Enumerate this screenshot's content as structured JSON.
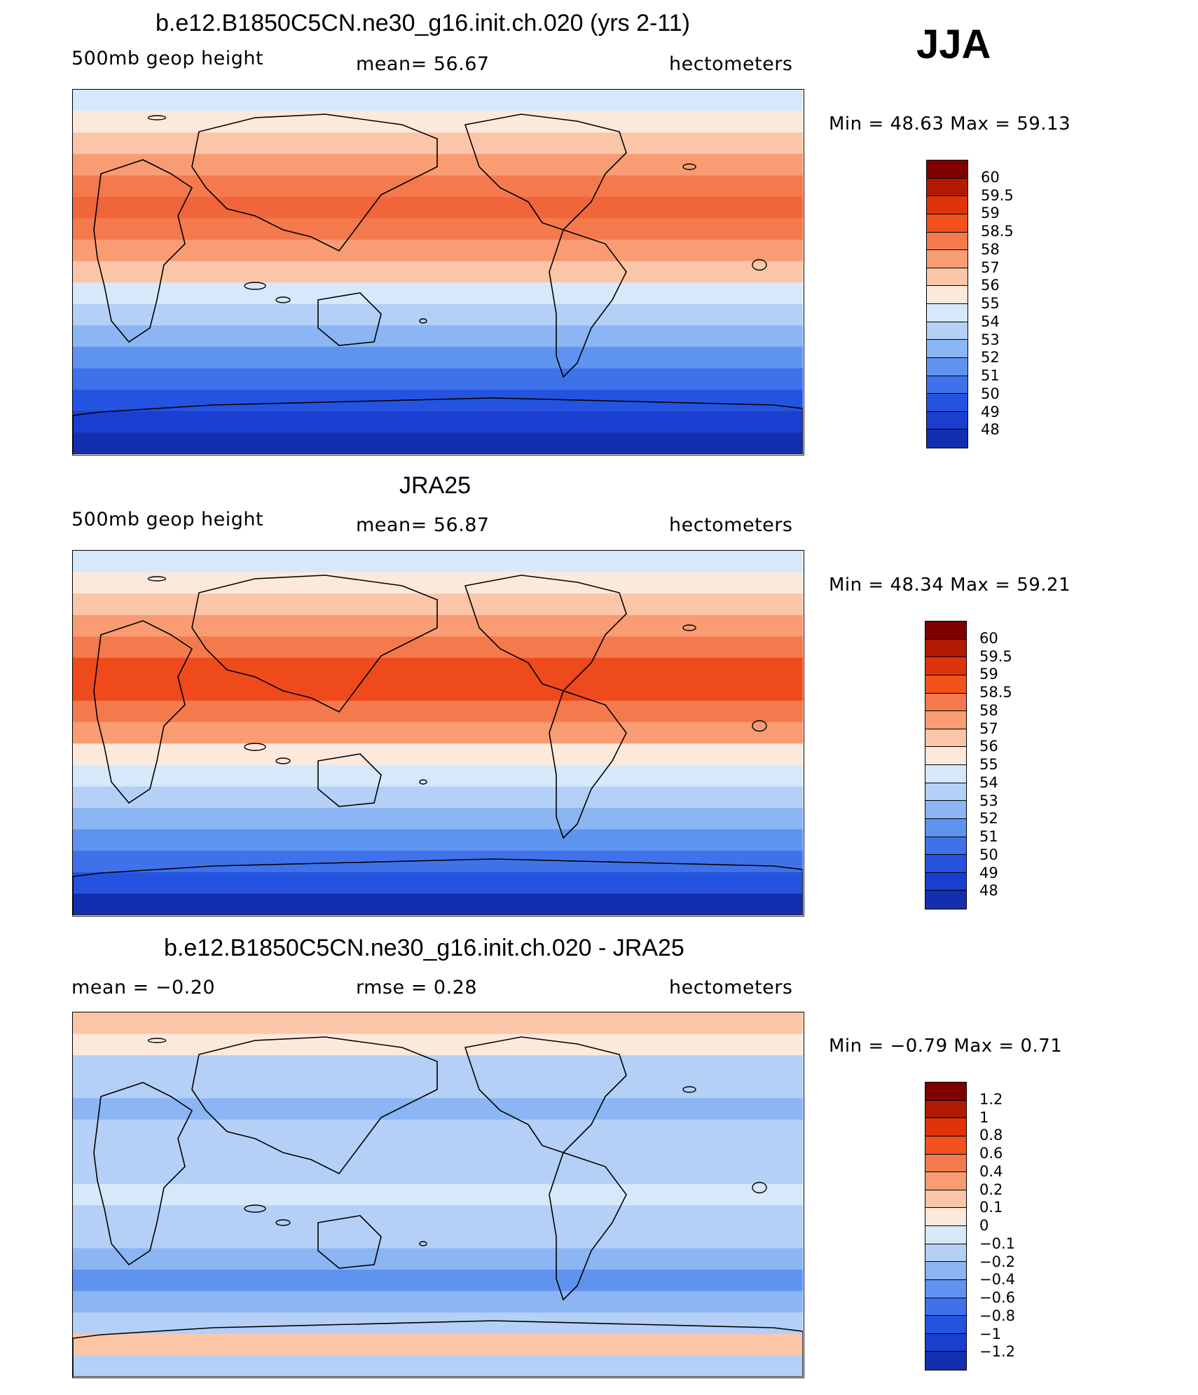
{
  "season": "JJA",
  "panels": [
    {
      "title": "b.e12.B1850C5CN.ne30_g16.init.ch.020 (yrs 2-11)",
      "left_label": "500mb  geop  height",
      "center_label": "mean=   56.67",
      "right_label": "hectometers",
      "minmax": "Min  =    48.63  Max  =    59.13",
      "colorbar_labels": [
        "60",
        "59.5",
        "59",
        "58.5",
        "58",
        "57",
        "56",
        "55",
        "54",
        "53",
        "52",
        "51",
        "50",
        "49",
        "48"
      ],
      "map_bands": [
        "#d7e8fb",
        "#fde9dc",
        "#fbc6a8",
        "#f99c73",
        "#f47a4e",
        "#f0653a",
        "#f47a4e",
        "#f99c73",
        "#fbc6a8",
        "#d7e8fb",
        "#b4d0f6",
        "#8bb5f3",
        "#5f93f0",
        "#3f72ea",
        "#2453e0",
        "#1a3fd0",
        "#132fb0"
      ]
    },
    {
      "title": "JRA25",
      "left_label": "500mb  geop  height",
      "center_label": "mean=   56.87",
      "right_label": "hectometers",
      "minmax": "Min  =    48.34  Max  =    59.21",
      "colorbar_labels": [
        "60",
        "59.5",
        "59",
        "58.5",
        "58",
        "57",
        "56",
        "55",
        "54",
        "53",
        "52",
        "51",
        "50",
        "49",
        "48"
      ],
      "map_bands": [
        "#d7e8fb",
        "#fde9dc",
        "#fbc6a8",
        "#f99c73",
        "#f47a4e",
        "#ee4a1c",
        "#ee4a1c",
        "#f47a4e",
        "#f99c73",
        "#fde9dc",
        "#d7e8fb",
        "#b4d0f6",
        "#8bb5f3",
        "#5f93f0",
        "#3f72ea",
        "#2453e0",
        "#132fb0"
      ]
    },
    {
      "title": "b.e12.B1850C5CN.ne30_g16.init.ch.020 - JRA25",
      "left_label": "mean  =   −0.20",
      "center_label": "rmse  =     0.28",
      "right_label": "hectometers",
      "minmax": "Min  =   −0.79  Max  =     0.71",
      "colorbar_labels": [
        "1.2",
        "1",
        "0.8",
        "0.6",
        "0.4",
        "0.2",
        "0.1",
        "0",
        "−0.1",
        "−0.2",
        "−0.4",
        "−0.6",
        "−0.8",
        "−1",
        "−1.2"
      ],
      "map_bands": [
        "#fbc6a8",
        "#fde9dc",
        "#b4d0f6",
        "#b4d0f6",
        "#8bb5f3",
        "#b4d0f6",
        "#b4d0f6",
        "#b4d0f6",
        "#d7e8fb",
        "#b4d0f6",
        "#b4d0f6",
        "#8bb5f3",
        "#5f93f0",
        "#8bb5f3",
        "#b4d0f6",
        "#fbc6a8",
        "#b4d0f6"
      ]
    }
  ],
  "colorbar_colors": {
    "full": [
      "#800000",
      "#b01a00",
      "#e0330a",
      "#f4521c",
      "#f47a4e",
      "#f99c73",
      "#fbc6a8",
      "#fde9dc",
      "#d7e8fb",
      "#b4d0f6",
      "#8bb5f3",
      "#5f93f0",
      "#3f72ea",
      "#2453e0",
      "#1a3fd0",
      "#132fb0",
      "#001080"
    ]
  }
}
